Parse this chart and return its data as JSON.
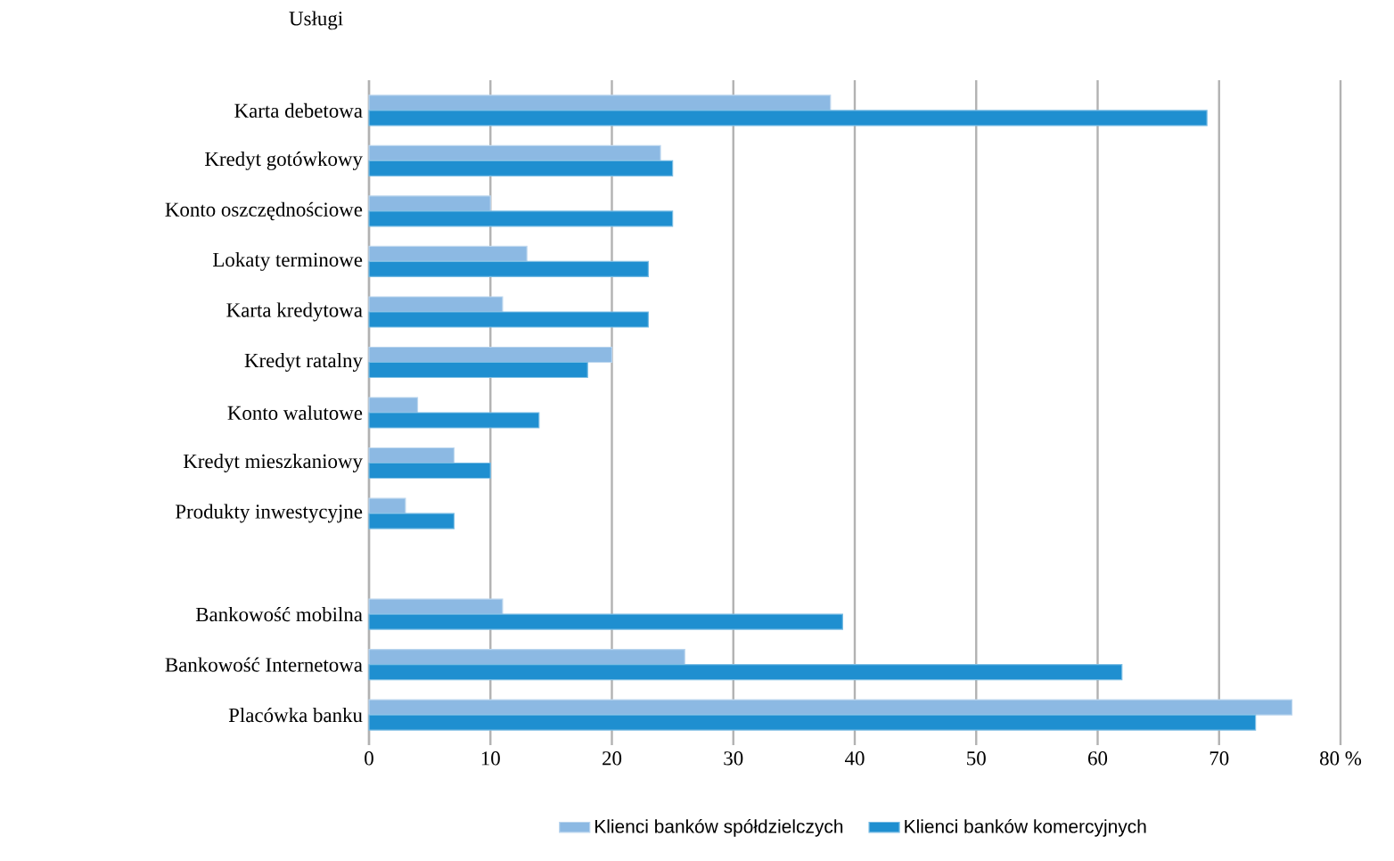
{
  "chart_data": {
    "type": "bar",
    "orientation": "horizontal",
    "ylabel": "Usługi",
    "categories": [
      "Karta debetowa",
      "Kredyt gotówkowy",
      "Konto oszczędnościowe",
      "Lokaty terminowe",
      "Karta kredytowa",
      "Kredyt ratalny",
      "Konto walutowe",
      "Kredyt mieszkaniowy",
      "Produkty inwestycyjne",
      null,
      "Bankowość mobilna",
      "Bankowość Internetowa",
      "Placówka banku"
    ],
    "series": [
      {
        "name": "Klienci banków spółdzielczych",
        "color": "#8cb9e3",
        "values": [
          38,
          24,
          10,
          13,
          11,
          20,
          4,
          7,
          3,
          null,
          11,
          26,
          76
        ]
      },
      {
        "name": "Klienci banków komercyjnych",
        "color": "#1f8fd0",
        "values": [
          69,
          25,
          25,
          23,
          23,
          18,
          14,
          10,
          7,
          null,
          39,
          62,
          73
        ]
      }
    ],
    "xlim": [
      0,
      80
    ],
    "xticks": [
      0,
      10,
      20,
      30,
      40,
      50,
      60,
      70,
      {
        "value": 80,
        "label": "80 %"
      }
    ],
    "grid": "x",
    "legend": "bottom"
  }
}
